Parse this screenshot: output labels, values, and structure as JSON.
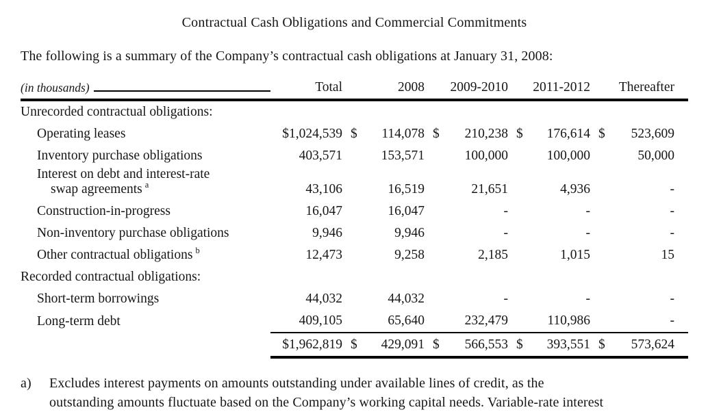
{
  "title": "Contractual Cash Obligations and Commercial Commitments",
  "intro": "The following is a summary of the Company’s contractual cash obligations at January 31, 2008:",
  "table": {
    "unit_label": "(in thousands)",
    "columns": [
      "Total",
      "2008",
      "2009-2010",
      "2011-2012",
      "Thereafter"
    ],
    "rows": [
      {
        "label": "Unrecorded contractual obligations:"
      },
      {
        "label": "Operating leases",
        "total": "$1,024,539",
        "ds1": "$",
        "y2008": "114,078",
        "ds2": "$",
        "y2009_2010": "210,238",
        "ds3": "$",
        "y2011_2012": "176,614",
        "ds4": "$",
        "thereafter": "523,609"
      },
      {
        "label": "Inventory purchase obligations",
        "total": "403,571",
        "y2008": "153,571",
        "y2009_2010": "100,000",
        "y2011_2012": "100,000",
        "thereafter": "50,000"
      },
      {
        "label1": "Interest on debt and interest-rate",
        "label2": "swap agreements",
        "sup": "a",
        "total": "43,106",
        "y2008": "16,519",
        "y2009_2010": "21,651",
        "y2011_2012": "4,936",
        "thereafter": "-"
      },
      {
        "label": "Construction-in-progress",
        "total": "16,047",
        "y2008": "16,047",
        "y2009_2010": "-",
        "y2011_2012": "-",
        "thereafter": "-"
      },
      {
        "label": "Non-inventory purchase obligations",
        "total": "9,946",
        "y2008": "9,946",
        "y2009_2010": "-",
        "y2011_2012": "-",
        "thereafter": "-"
      },
      {
        "label": "Other contractual obligations",
        "sup": "b",
        "total": "12,473",
        "y2008": "9,258",
        "y2009_2010": "2,185",
        "y2011_2012": "1,015",
        "thereafter": "15"
      },
      {
        "label": "Recorded contractual obligations:"
      },
      {
        "label": "Short-term borrowings",
        "total": "44,032",
        "y2008": "44,032",
        "y2009_2010": "-",
        "y2011_2012": "-",
        "thereafter": "-"
      },
      {
        "label": "Long-term debt",
        "total": "409,105",
        "y2008": "65,640",
        "y2009_2010": "232,479",
        "y2011_2012": "110,986",
        "thereafter": "-"
      },
      {
        "total": "$1,962,819",
        "ds1": "$",
        "y2008": "429,091",
        "ds2": "$",
        "y2009_2010": "566,553",
        "ds3": "$",
        "y2011_2012": "393,551",
        "ds4": "$",
        "thereafter": "573,624"
      }
    ]
  },
  "footnote": {
    "marker": "a)",
    "line1": "Excludes interest payments on amounts outstanding under available lines of credit, as the",
    "line2": "outstanding amounts fluctuate based on the Company’s working capital needs. Variable-rate interest"
  }
}
